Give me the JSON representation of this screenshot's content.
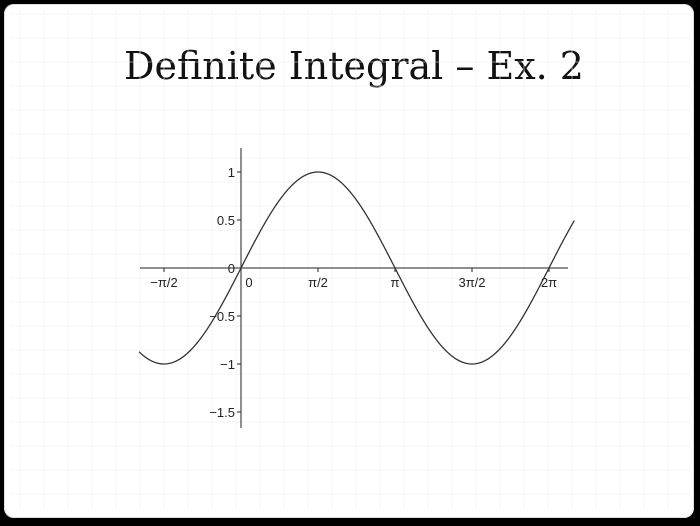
{
  "slide": {
    "title": "Definite Integral – Ex. 2"
  },
  "chart_data": {
    "type": "line",
    "title": "",
    "function": "sin(x)",
    "xlim": [
      -2.0,
      7.0
    ],
    "ylim": [
      -1.6,
      1.25
    ],
    "x_ticks": [
      {
        "value": -1.5708,
        "label": "−π/2"
      },
      {
        "value": 0,
        "label": "0"
      },
      {
        "value": 1.5708,
        "label": "π/2"
      },
      {
        "value": 3.1416,
        "label": "π"
      },
      {
        "value": 4.7124,
        "label": "3π/2"
      },
      {
        "value": 6.2832,
        "label": "2π"
      }
    ],
    "y_ticks": [
      {
        "value": 1,
        "label": "1"
      },
      {
        "value": 0.5,
        "label": "0.5"
      },
      {
        "value": 0,
        "label": "0"
      },
      {
        "value": -0.5,
        "label": "−0.5"
      },
      {
        "value": -1,
        "label": "−1"
      },
      {
        "value": -1.5,
        "label": "−1.5"
      }
    ],
    "series": [
      {
        "x": [
          -2.08,
          -1.5708,
          -1.0472,
          -0.5236,
          0,
          0.5236,
          1.0472,
          1.5708,
          2.0944,
          2.618,
          3.1416,
          3.6652,
          4.1888,
          4.7124,
          5.236,
          5.7596,
          6.2832,
          6.8
        ],
        "y": [
          -0.873,
          -1,
          -0.866,
          -0.5,
          0,
          0.5,
          0.866,
          1,
          0.866,
          0.5,
          0,
          -0.5,
          -0.866,
          -1,
          -0.866,
          -0.5,
          0,
          0.494
        ]
      }
    ],
    "grid": true,
    "legend": "none",
    "colors": {
      "curve": "#333333",
      "axis": "#222222",
      "grid": "#eeeeee"
    }
  }
}
